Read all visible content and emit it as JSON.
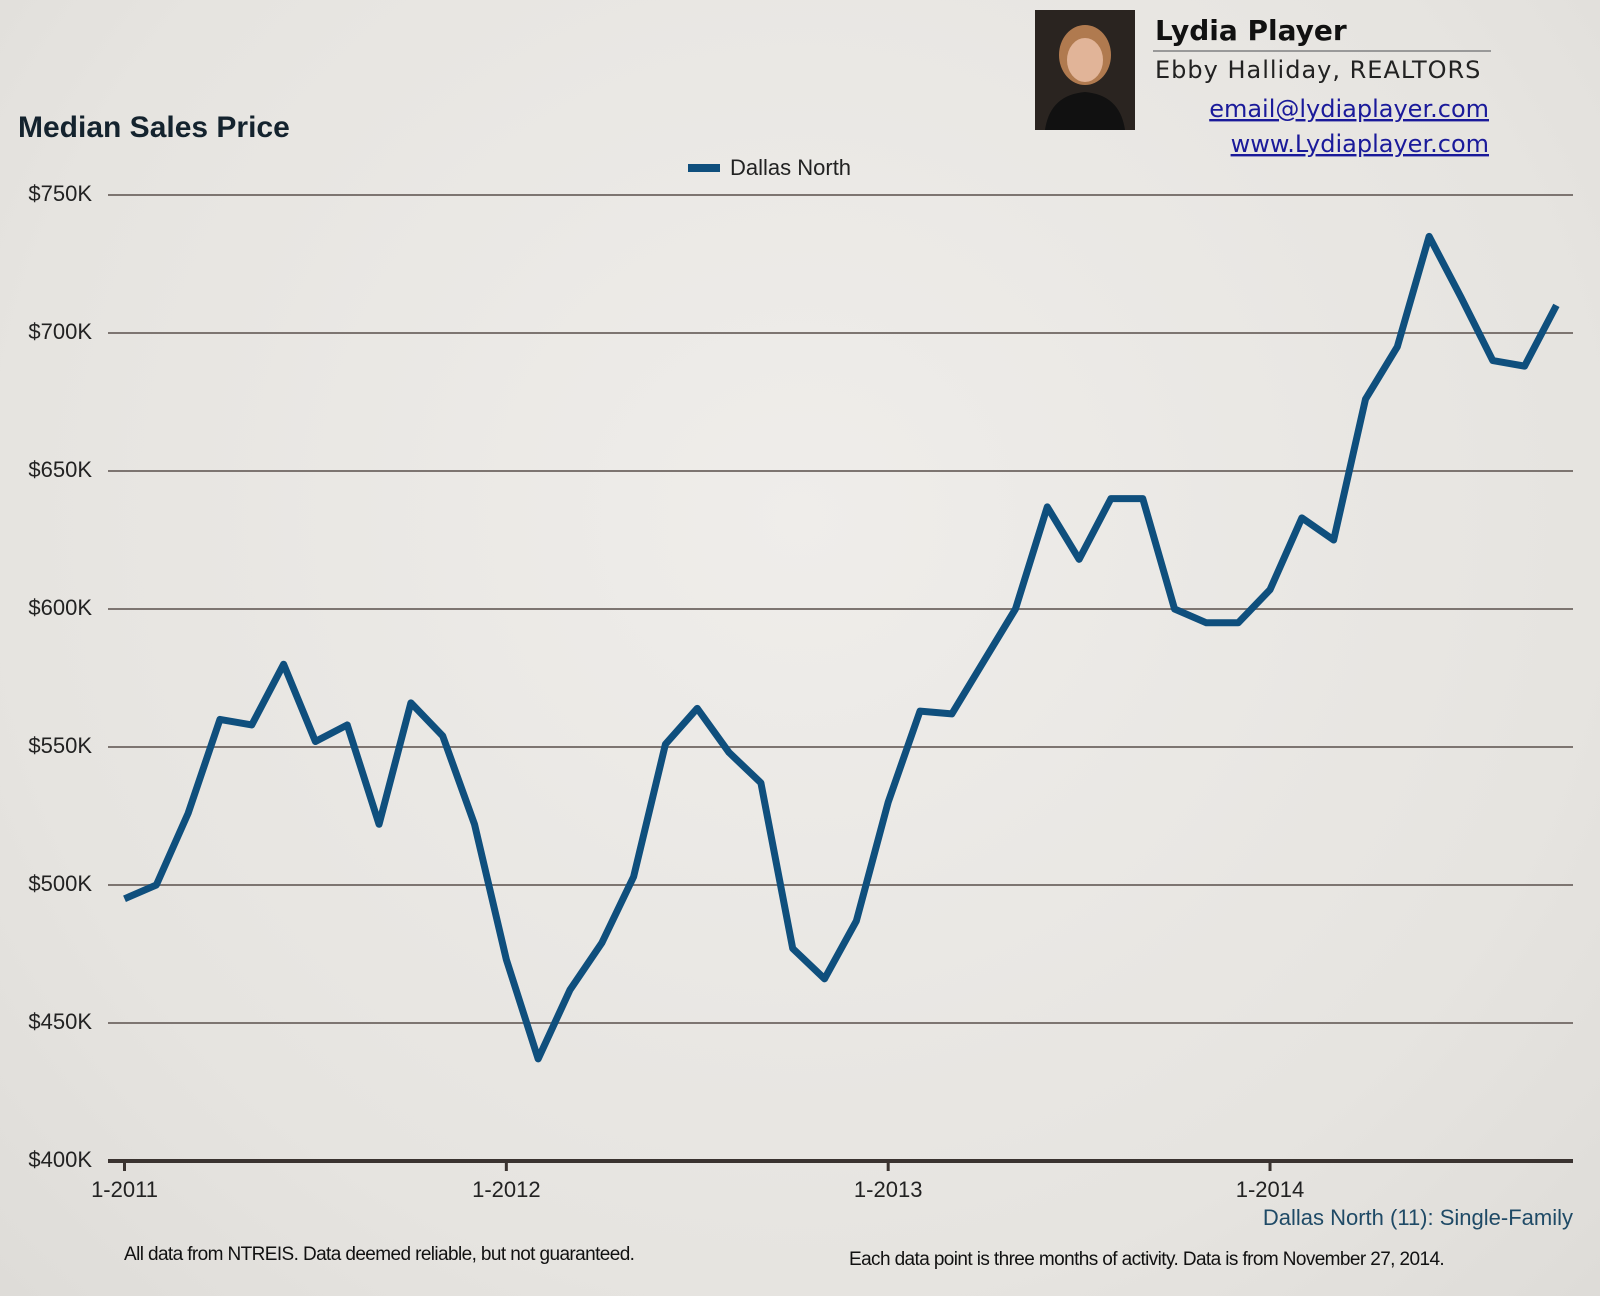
{
  "chart_data": {
    "type": "line",
    "title": "Median Sales Price",
    "subtitle": "Dallas North (11): Single-Family",
    "notes": [
      "All data from NTREIS. Data deemed reliable, but not guaranteed.",
      "Each data point is three months of activity. Data is from November 27, 2014."
    ],
    "agent": {
      "name": "Lydia Player",
      "company": "Ebby Halliday, REALTORS",
      "email": "email@lydiaplayer.com",
      "website": "www.Lydiaplayer.com"
    },
    "x": [
      "1-2011",
      "2-2011",
      "3-2011",
      "4-2011",
      "5-2011",
      "6-2011",
      "7-2011",
      "8-2011",
      "9-2011",
      "10-2011",
      "11-2011",
      "12-2011",
      "1-2012",
      "2-2012",
      "3-2012",
      "4-2012",
      "5-2012",
      "6-2012",
      "7-2012",
      "8-2012",
      "9-2012",
      "10-2012",
      "11-2012",
      "12-2012",
      "1-2013",
      "2-2013",
      "3-2013",
      "4-2013",
      "5-2013",
      "6-2013",
      "7-2013",
      "8-2013",
      "9-2013",
      "10-2013",
      "11-2013",
      "12-2013",
      "1-2014",
      "2-2014",
      "3-2014",
      "4-2014",
      "5-2014",
      "6-2014",
      "7-2014",
      "8-2014",
      "9-2014",
      "10-2014"
    ],
    "xticks": [
      "1-2011",
      "1-2012",
      "1-2013",
      "1-2014"
    ],
    "series": [
      {
        "name": "Dallas North",
        "color": "#0f4f7d",
        "values": [
          495000,
          500000,
          526000,
          560000,
          558000,
          580000,
          552000,
          558000,
          522000,
          566000,
          554000,
          522000,
          473000,
          437000,
          462000,
          479000,
          503000,
          551000,
          564000,
          548000,
          537000,
          477000,
          466000,
          487000,
          530000,
          563000,
          562000,
          581000,
          600000,
          637000,
          618000,
          640000,
          640000,
          600000,
          595000,
          595000,
          607000,
          633000,
          625000,
          676000,
          695000,
          735000,
          713000,
          690000,
          688000,
          710000
        ]
      }
    ],
    "ylim": [
      400000,
      750000
    ],
    "yticks": [
      {
        "value": 400000,
        "label": "$400K"
      },
      {
        "value": 450000,
        "label": "$450K"
      },
      {
        "value": 500000,
        "label": "$500K"
      },
      {
        "value": 550000,
        "label": "$550K"
      },
      {
        "value": 600000,
        "label": "$600K"
      },
      {
        "value": 650000,
        "label": "$650K"
      },
      {
        "value": 700000,
        "label": "$700K"
      },
      {
        "value": 750000,
        "label": "$750K"
      }
    ],
    "grid": true
  }
}
